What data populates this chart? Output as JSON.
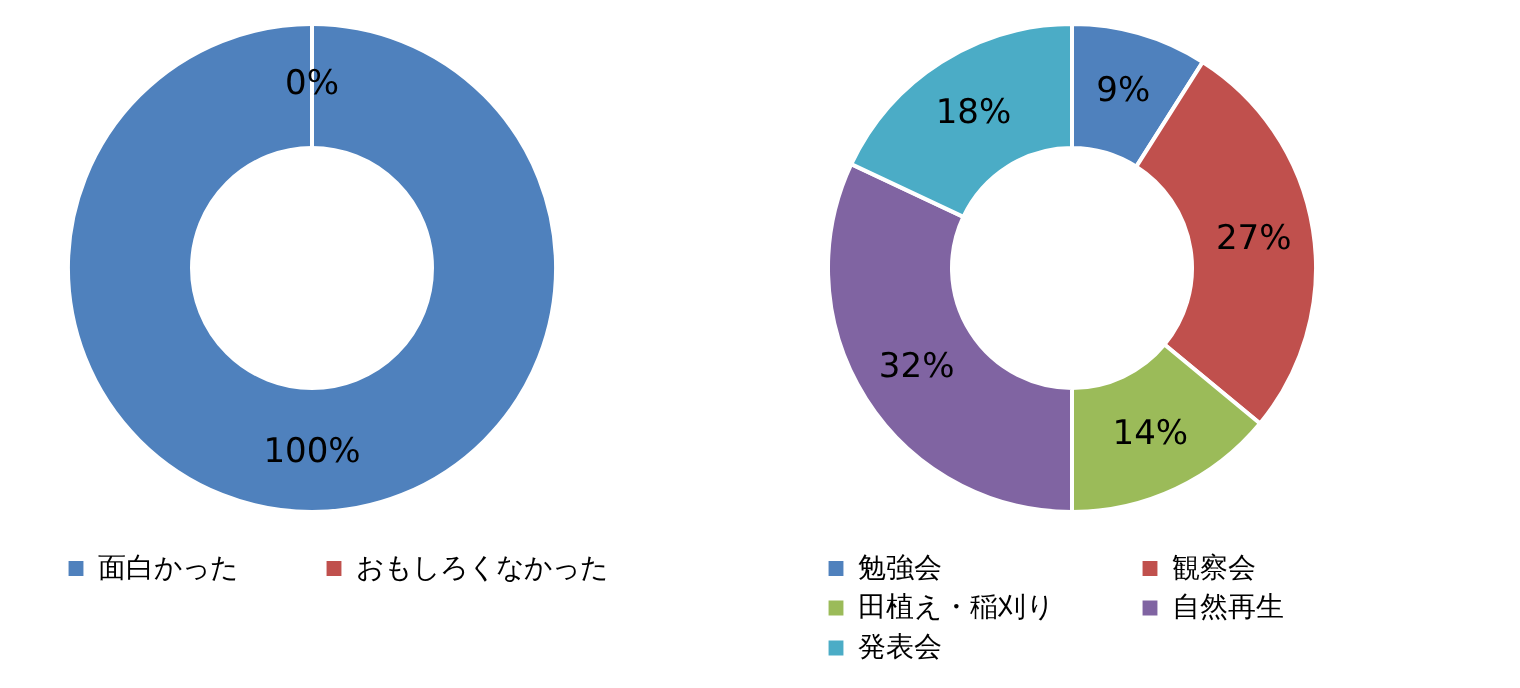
{
  "chart_data": [
    {
      "type": "donut",
      "categories": [
        "面白かった",
        "おもしろくなかった"
      ],
      "values": [
        100,
        0
      ],
      "colors": [
        "#4f81bd",
        "#c0504d"
      ],
      "value_labels": [
        "100%",
        "0%"
      ],
      "legend": "bottom"
    },
    {
      "type": "donut",
      "categories": [
        "勉強会",
        "観察会",
        "田植え・稲刈り",
        "自然再生",
        "発表会"
      ],
      "values": [
        9,
        27,
        14,
        32,
        18
      ],
      "colors": [
        "#4f81bd",
        "#c0504d",
        "#9bbb59",
        "#8064a2",
        "#4bacc6"
      ],
      "value_labels": [
        "9%",
        "27%",
        "14%",
        "32%",
        "18%"
      ],
      "legend": "bottom"
    }
  ]
}
